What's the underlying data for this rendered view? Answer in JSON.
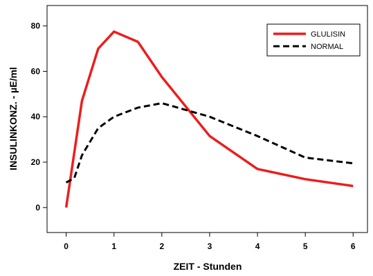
{
  "chart_data": {
    "type": "line",
    "xlabel": "ZEIT - Stunden",
    "ylabel": "INSULINKONZ. - µE/ml",
    "xlim": [
      -0.4,
      6.3
    ],
    "ylim": [
      -11,
      89
    ],
    "xticks": [
      0,
      1,
      2,
      3,
      4,
      5,
      6
    ],
    "yticks": [
      0,
      20,
      40,
      60,
      80
    ],
    "grid": false,
    "legend_position": "top-right",
    "series": [
      {
        "name": "GLULISIN",
        "color": "#ee1c1c",
        "style": "solid",
        "x": [
          0,
          0.33,
          0.67,
          1,
          1.5,
          2,
          3,
          4,
          5,
          6
        ],
        "y": [
          0,
          47,
          70,
          77.5,
          73,
          57.5,
          31.5,
          17,
          12.5,
          9.5
        ]
      },
      {
        "name": "NORMAL",
        "color": "#000000",
        "style": "dashed",
        "x": [
          0,
          0.17,
          0.33,
          0.67,
          1,
          1.5,
          2,
          2.5,
          3,
          4,
          5,
          6
        ],
        "y": [
          11,
          13,
          23,
          35,
          40,
          44,
          46,
          43,
          40,
          31.5,
          22,
          19.5
        ]
      }
    ]
  }
}
